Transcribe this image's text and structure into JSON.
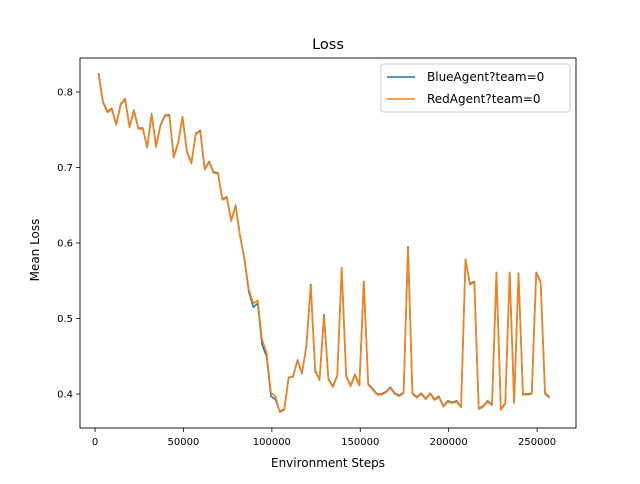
{
  "chart_data": {
    "type": "line",
    "title": "Loss",
    "xlabel": "Environment Steps",
    "ylabel": "Mean Loss",
    "xlim": [
      -8500,
      272000
    ],
    "ylim": [
      0.355,
      0.845
    ],
    "xticks": [
      0,
      50000,
      100000,
      150000,
      200000,
      250000
    ],
    "xtick_labels": [
      "0",
      "50000",
      "100000",
      "150000",
      "200000",
      "250000"
    ],
    "yticks": [
      0.4,
      0.5,
      0.6,
      0.7,
      0.8
    ],
    "ytick_labels": [
      "0.4",
      "0.5",
      "0.6",
      "0.7",
      "0.8"
    ],
    "grid": false,
    "legend_position": "top-right",
    "series": [
      {
        "name": "BlueAgent?team=0",
        "color": "#1f77b4",
        "x": [
          2000,
          4500,
          7000,
          9500,
          12000,
          14500,
          17000,
          19500,
          22000,
          24500,
          27000,
          29500,
          32000,
          34500,
          37000,
          39500,
          42000,
          44500,
          47000,
          49500,
          52000,
          54500,
          57000,
          59500,
          62000,
          64500,
          67000,
          69500,
          72000,
          74500,
          77000,
          79500,
          82000,
          84500,
          87000,
          89500,
          92000,
          94500,
          97000,
          99500,
          102000,
          104500,
          107000,
          109500,
          112000,
          114500,
          117000,
          119500,
          122000,
          124500,
          127000,
          129500,
          132000,
          134500,
          137000,
          139500,
          142000,
          144500,
          147000,
          149500,
          152000,
          154500,
          157000,
          159500,
          162000,
          164500,
          167000,
          169500,
          172000,
          174500,
          177000,
          179500,
          182000,
          184500,
          187000,
          189500,
          192000,
          194500,
          197000,
          199500,
          202000,
          204500,
          207000,
          209500,
          212000,
          214500,
          217000,
          219500,
          222000,
          224500,
          227000,
          229500,
          232000,
          234500,
          237000,
          239500,
          242000,
          244500,
          247000,
          249500,
          252000,
          254500,
          257000
        ],
        "y": [
          0.825,
          0.787,
          0.774,
          0.778,
          0.757,
          0.784,
          0.791,
          0.754,
          0.776,
          0.752,
          0.752,
          0.727,
          0.771,
          0.728,
          0.756,
          0.769,
          0.77,
          0.714,
          0.733,
          0.767,
          0.721,
          0.706,
          0.745,
          0.749,
          0.698,
          0.708,
          0.694,
          0.693,
          0.658,
          0.661,
          0.63,
          0.65,
          0.61,
          0.578,
          0.535,
          0.515,
          0.52,
          0.465,
          0.45,
          0.397,
          0.393,
          0.377,
          0.38,
          0.422,
          0.423,
          0.445,
          0.427,
          0.463,
          0.545,
          0.43,
          0.42,
          0.505,
          0.42,
          0.41,
          0.425,
          0.567,
          0.425,
          0.411,
          0.426,
          0.412,
          0.549,
          0.413,
          0.407,
          0.4,
          0.4,
          0.403,
          0.409,
          0.401,
          0.398,
          0.402,
          0.595,
          0.401,
          0.396,
          0.401,
          0.394,
          0.401,
          0.393,
          0.397,
          0.384,
          0.391,
          0.389,
          0.391,
          0.383,
          0.578,
          0.546,
          0.549,
          0.381,
          0.384,
          0.391,
          0.386,
          0.561,
          0.38,
          0.388,
          0.561,
          0.389,
          0.56,
          0.4,
          0.4,
          0.401,
          0.561,
          0.549,
          0.401,
          0.396
        ]
      },
      {
        "name": "RedAgent?team=0",
        "color": "#ff7f0e",
        "x": [
          2000,
          4500,
          7000,
          9500,
          12000,
          14500,
          17000,
          19500,
          22000,
          24500,
          27000,
          29500,
          32000,
          34500,
          37000,
          39500,
          42000,
          44500,
          47000,
          49500,
          52000,
          54500,
          57000,
          59500,
          62000,
          64500,
          67000,
          69500,
          72000,
          74500,
          77000,
          79500,
          82000,
          84500,
          87000,
          89500,
          92000,
          94500,
          97000,
          99500,
          102000,
          104500,
          107000,
          109500,
          112000,
          114500,
          117000,
          119500,
          122000,
          124500,
          127000,
          129500,
          132000,
          134500,
          137000,
          139500,
          142000,
          144500,
          147000,
          149500,
          152000,
          154500,
          157000,
          159500,
          162000,
          164500,
          167000,
          169500,
          172000,
          174500,
          177000,
          179500,
          182000,
          184500,
          187000,
          189500,
          192000,
          194500,
          197000,
          199500,
          202000,
          204500,
          207000,
          209500,
          212000,
          214500,
          217000,
          219500,
          222000,
          224500,
          227000,
          229500,
          232000,
          234500,
          237000,
          239500,
          242000,
          244500,
          247000,
          249500,
          252000,
          254500,
          257000
        ],
        "y": [
          0.823,
          0.786,
          0.773,
          0.777,
          0.756,
          0.783,
          0.79,
          0.753,
          0.775,
          0.751,
          0.751,
          0.726,
          0.77,
          0.727,
          0.755,
          0.768,
          0.769,
          0.713,
          0.732,
          0.766,
          0.72,
          0.705,
          0.744,
          0.748,
          0.697,
          0.707,
          0.693,
          0.692,
          0.657,
          0.66,
          0.629,
          0.649,
          0.609,
          0.58,
          0.538,
          0.52,
          0.524,
          0.472,
          0.455,
          0.402,
          0.397,
          0.376,
          0.379,
          0.421,
          0.424,
          0.444,
          0.428,
          0.462,
          0.543,
          0.432,
          0.418,
          0.503,
          0.419,
          0.409,
          0.424,
          0.566,
          0.424,
          0.41,
          0.425,
          0.411,
          0.548,
          0.412,
          0.406,
          0.399,
          0.399,
          0.402,
          0.408,
          0.4,
          0.397,
          0.401,
          0.593,
          0.4,
          0.395,
          0.4,
          0.393,
          0.4,
          0.392,
          0.396,
          0.383,
          0.39,
          0.388,
          0.39,
          0.382,
          0.577,
          0.545,
          0.548,
          0.38,
          0.383,
          0.39,
          0.385,
          0.56,
          0.379,
          0.387,
          0.56,
          0.388,
          0.559,
          0.399,
          0.399,
          0.4,
          0.56,
          0.548,
          0.4,
          0.395
        ]
      }
    ]
  }
}
